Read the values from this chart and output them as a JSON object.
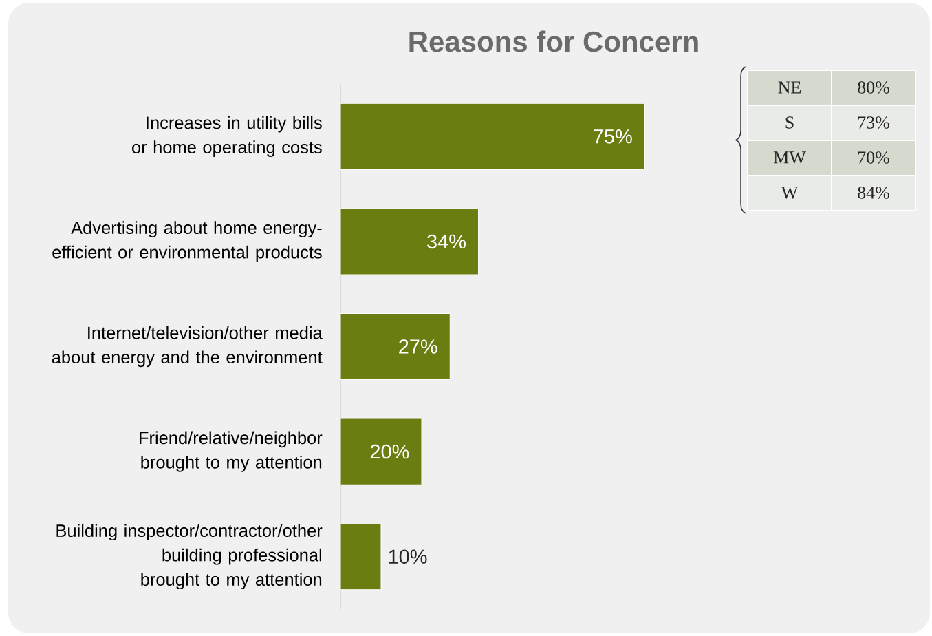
{
  "chart_data": {
    "type": "bar",
    "orientation": "horizontal",
    "title": "Reasons for Concern",
    "categories": [
      "Increases in utility bills or home operating costs",
      "Advertising about home energy-efficient or environmental products",
      "Internet/television/other media about energy and the environment",
      "Friend/relative/neighbor brought to my attention",
      "Building inspector/contractor/other building professional brought to my attention"
    ],
    "values": [
      75,
      34,
      27,
      20,
      10
    ],
    "value_labels": [
      "75%",
      "34%",
      "27%",
      "20%",
      "10%"
    ],
    "color": "#6a7d11",
    "annotations": [
      "NE",
      "80%",
      "S",
      "73%",
      "MW",
      "70%",
      "W",
      "84%"
    ]
  }
}
